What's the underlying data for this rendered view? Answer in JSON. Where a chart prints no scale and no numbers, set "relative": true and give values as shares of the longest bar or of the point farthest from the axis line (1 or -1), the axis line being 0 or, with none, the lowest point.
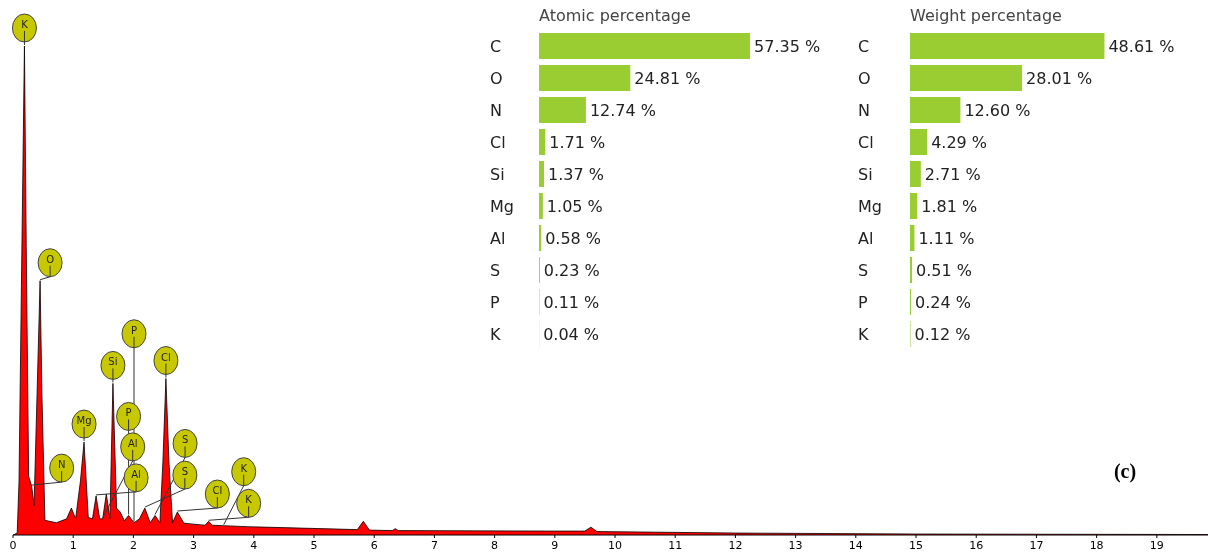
{
  "chart_data": [
    {
      "type": "area",
      "relative": true,
      "color": "#ff0000",
      "xlim": [
        0,
        19.85
      ],
      "xticks": [
        0,
        1,
        2,
        3,
        4,
        5,
        6,
        7,
        8,
        9,
        10,
        11,
        12,
        13,
        14,
        15,
        16,
        17,
        18,
        19
      ],
      "x": [
        0,
        0.07,
        0.1,
        0.14,
        0.19,
        0.22,
        0.26,
        0.31,
        0.35,
        0.4,
        0.45,
        0.48,
        0.53,
        0.72,
        0.89,
        0.97,
        1.04,
        1.12,
        1.18,
        1.25,
        1.32,
        1.38,
        1.44,
        1.49,
        1.55,
        1.61,
        1.66,
        1.72,
        1.78,
        1.85,
        1.92,
        2.01,
        2.1,
        2.19,
        2.28,
        2.36,
        2.44,
        2.49,
        2.54,
        2.59,
        2.65,
        2.73,
        2.84,
        3.19,
        3.25,
        3.31,
        3.5,
        3.89,
        5.72,
        5.82,
        5.92,
        6.3,
        6.35,
        6.4,
        9,
        9.5,
        9.6,
        9.7,
        12,
        15,
        19.85
      ],
      "values": [
        0,
        0.004,
        0.11,
        0.51,
        1,
        0.59,
        0.12,
        0.1,
        0.06,
        0.29,
        0.52,
        0.29,
        0.03,
        0.025,
        0.033,
        0.055,
        0.033,
        0.11,
        0.19,
        0.036,
        0.033,
        0.08,
        0.033,
        0.033,
        0.084,
        0.033,
        0.31,
        0.055,
        0.047,
        0.029,
        0.04,
        0.025,
        0.033,
        0.055,
        0.025,
        0.04,
        0.025,
        0.15,
        0.32,
        0.15,
        0.025,
        0.047,
        0.024,
        0.02,
        0.028,
        0.02,
        0.019,
        0.017,
        0.011,
        0.028,
        0.01,
        0.009,
        0.013,
        0.009,
        0.008,
        0.008,
        0.016,
        0.007,
        0.004,
        0.002,
        0.001
      ],
      "annotations": [
        {
          "text": "K",
          "x": 0.19,
          "y": 1
        },
        {
          "text": "O",
          "x": 0.45,
          "y": 0.52
        },
        {
          "text": "Si",
          "x": 1.66,
          "y": 0.31
        },
        {
          "text": "Cl",
          "x": 2.54,
          "y": 0.32
        },
        {
          "text": "N",
          "x": 0.31,
          "y": 0.1
        },
        {
          "text": "Mg",
          "x": 1.18,
          "y": 0.19
        },
        {
          "text": "Al",
          "x": 1.38,
          "y": 0.08
        },
        {
          "text": "Al",
          "x": 1.49,
          "y": 0.033
        },
        {
          "text": "P",
          "x": 1.92,
          "y": 0.04
        },
        {
          "text": "S",
          "x": 2.19,
          "y": 0.055
        },
        {
          "text": "P",
          "x": 2.01,
          "y": 0.025
        },
        {
          "text": "S",
          "x": 2.36,
          "y": 0.04
        },
        {
          "text": "Cl",
          "x": 2.73,
          "y": 0.047
        },
        {
          "text": "K",
          "x": 3.25,
          "y": 0.028
        },
        {
          "text": "K",
          "x": 3.5,
          "y": 0.019
        },
        "(c)"
      ]
    },
    {
      "type": "bar",
      "orientation": "horizontal",
      "title": "Atomic percentage",
      "color": "#9acd32",
      "categories": [
        "C",
        "O",
        "N",
        "Cl",
        "Si",
        "Mg",
        "Al",
        "S",
        "P",
        "K"
      ],
      "values": [
        57.35,
        24.81,
        12.74,
        1.71,
        1.37,
        1.05,
        0.58,
        0.23,
        0.11,
        0.04
      ],
      "value_labels": [
        "57.35 %",
        "24.81 %",
        "12.74 %",
        "1.71 %",
        "1.37 %",
        "1.05 %",
        "0.58 %",
        "0.23 %",
        "0.11 %",
        "0.04 %"
      ]
    },
    {
      "type": "bar",
      "orientation": "horizontal",
      "title": "Weight percentage",
      "color": "#9acd32",
      "categories": [
        "C",
        "O",
        "N",
        "Cl",
        "Si",
        "Mg",
        "Al",
        "S",
        "P",
        "K"
      ],
      "values": [
        48.61,
        28.01,
        12.6,
        4.29,
        2.71,
        1.81,
        1.11,
        0.51,
        0.24,
        0.12
      ],
      "value_labels": [
        "48.61 %",
        "28.01 %",
        "12.60 %",
        "4.29 %",
        "2.71 %",
        "1.81 %",
        "1.11 %",
        "0.51 %",
        "0.24 %",
        "0.12 %"
      ]
    }
  ]
}
